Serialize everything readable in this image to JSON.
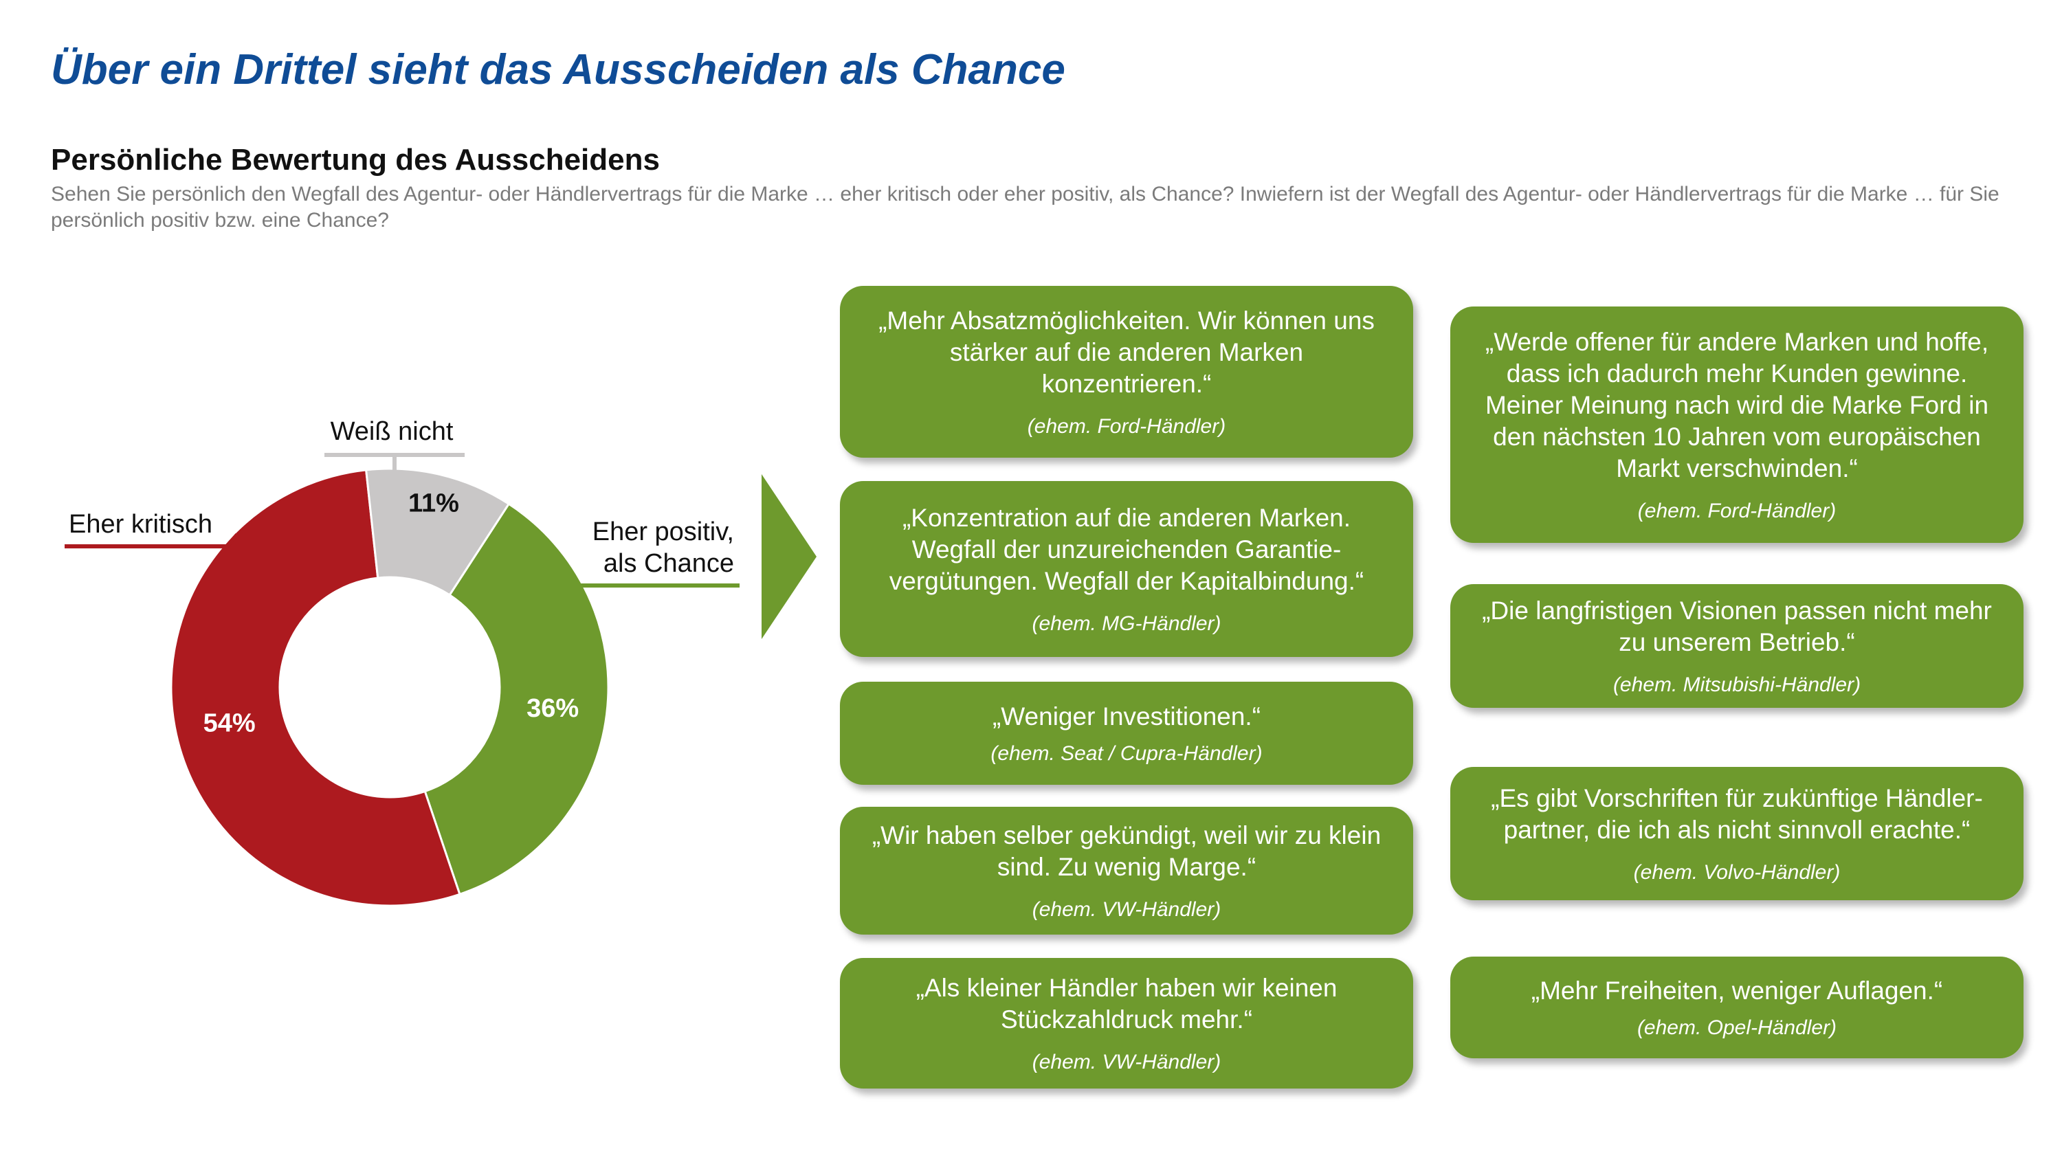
{
  "title": "Über ein Drittel sieht das Ausscheiden als Chance",
  "subtitle": "Persönliche Bewertung des Ausscheidens",
  "question": "Sehen Sie persönlich den Wegfall des Agentur- oder Händlervertrags für die Marke … eher kritisch oder eher positiv, als Chance? Inwiefern ist der Wegfall des Agentur- oder Händlervertrags für die Marke … für Sie persönlich positiv bzw. eine Chance?",
  "chart_data": {
    "type": "pie",
    "donut": true,
    "categories": [
      "Eher positiv, als Chance",
      "Eher kritisch",
      "Weiß nicht"
    ],
    "values": [
      36,
      54,
      11
    ],
    "value_labels": [
      "36%",
      "54%",
      "11%"
    ],
    "colors": [
      "#6e9a2d",
      "#ad1a1f",
      "#c9c7c7"
    ],
    "legend_lines": [
      [
        "Eher positiv,",
        "als Chance"
      ],
      [
        "Eher kritisch"
      ],
      [
        "Weiß nicht"
      ]
    ]
  },
  "quotes": [
    {
      "text": "„Mehr Absatzmöglichkeiten. Wir können uns stärker auf die anderen Marken konzentrieren.“",
      "source": "(ehem. Ford-Händler)"
    },
    {
      "text": "„Konzentration auf die anderen Marken. Wegfall der unzureichenden Garantie-vergütungen. Wegfall der Kapitalbindung.“",
      "source": "(ehem. MG-Händler)"
    },
    {
      "text": "„Weniger Investitionen.“",
      "source": "(ehem. Seat / Cupra-Händler)"
    },
    {
      "text": "„Wir haben selber gekündigt, weil wir zu klein sind. Zu wenig Marge.“",
      "source": "(ehem. VW-Händler)"
    },
    {
      "text": "„Als kleiner Händler haben wir keinen Stückzahldruck mehr.“",
      "source": "(ehem. VW-Händler)"
    },
    {
      "text": "„Werde offener für andere Marken und hoffe, dass ich dadurch mehr Kunden gewinne. Meiner Meinung nach wird die Marke Ford in den nächsten 10 Jahren vom europäischen Markt verschwinden.“",
      "source": "(ehem. Ford-Händler)"
    },
    {
      "text": "„Die langfristigen Visionen passen nicht mehr zu unserem Betrieb.“",
      "source": "(ehem. Mitsubishi-Händler)"
    },
    {
      "text": "„Es gibt Vorschriften für zukünftige Händler-partner, die ich als nicht sinnvoll erachte.“",
      "source": "(ehem. Volvo-Händler)"
    },
    {
      "text": "„Mehr Freiheiten, weniger Auflagen.“",
      "source": "(ehem. Opel-Händler)"
    }
  ]
}
